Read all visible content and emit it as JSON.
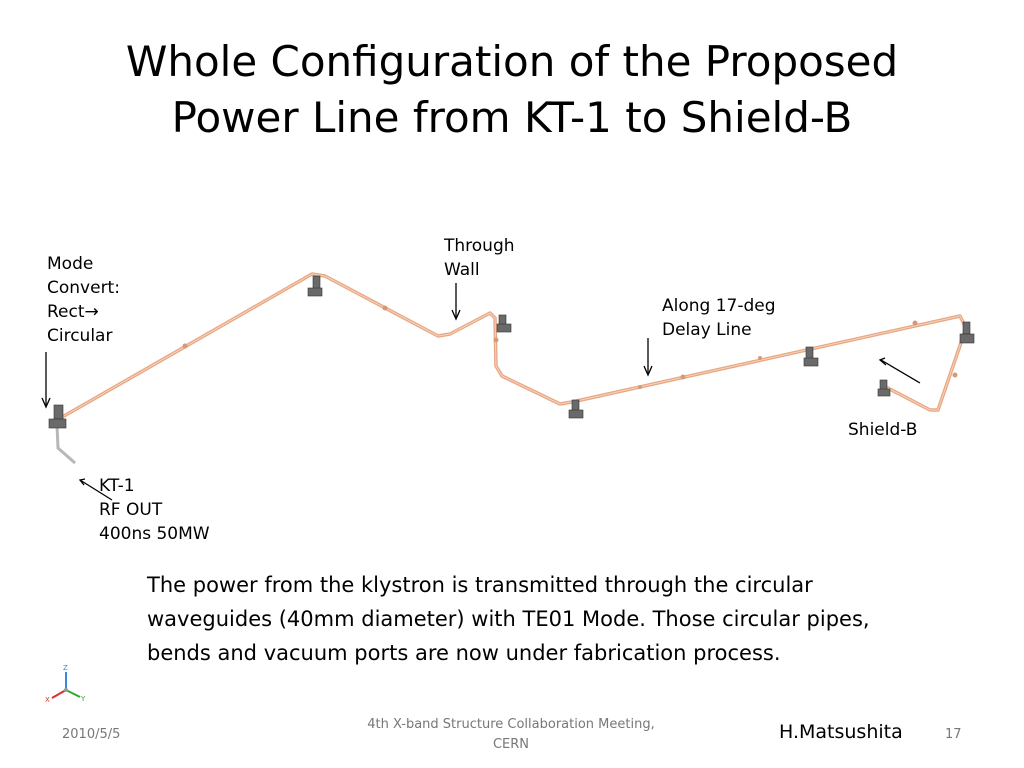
{
  "title": {
    "line1": "Whole Configuration of the Proposed",
    "line2": "Power Line from KT-1 to Shield-B"
  },
  "labels": {
    "mode_convert": [
      "Mode",
      "Convert:",
      "Rect→",
      "Circular"
    ],
    "through_wall": [
      "Through",
      "Wall"
    ],
    "along_delay": [
      "Along 17-deg",
      "Delay Line"
    ],
    "shield_b": "Shield-B",
    "kt1": [
      "KT-1",
      "RF OUT",
      "400ns 50MW"
    ]
  },
  "axis_triad": {
    "z": "Z",
    "x": "X",
    "y": "Y"
  },
  "caption": "The power from the klystron is transmitted through the circular waveguides (40mm diameter) with TE01 Mode.  Those circular pipes, bends and vacuum ports are now under fabrication process.",
  "footer": {
    "date": "2010/5/5",
    "meeting_line1": "4th X-band Structure Collaboration Meeting,",
    "meeting_line2": "CERN",
    "author": "H.Matsushita",
    "page": "17"
  },
  "colors": {
    "pipe": "#e8a783",
    "pipe_dark": "#c98c6a",
    "support": "#555555"
  }
}
